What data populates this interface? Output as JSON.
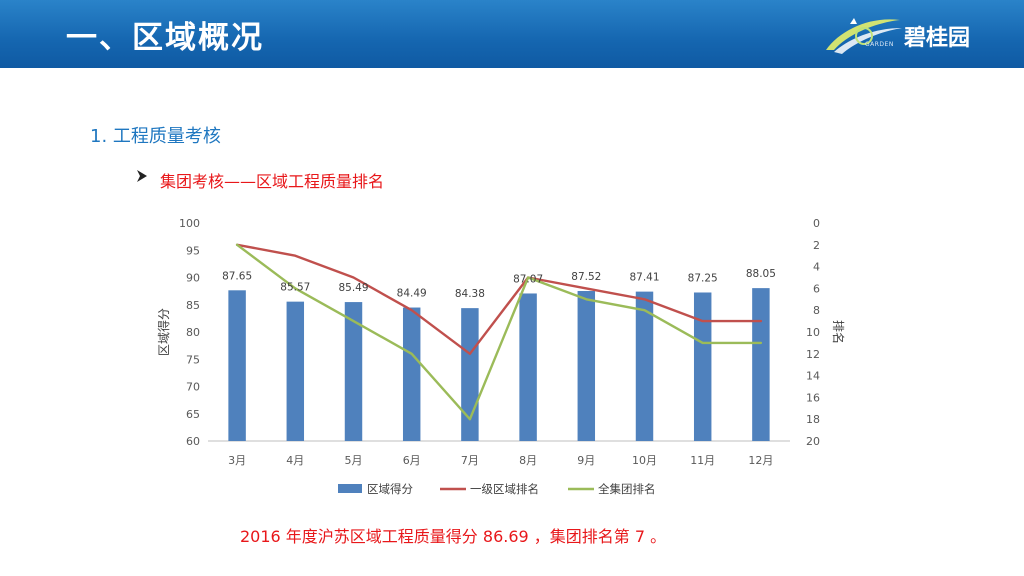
{
  "header": {
    "title": "一、区域概况"
  },
  "logo": {
    "text": "碧桂园",
    "sub": "GARDEN"
  },
  "section_title": "1. 工程质量考核",
  "bullet": "集团考核——区域工程质量排名",
  "summary": "2016 年度沪苏区域工程质量得分 86.69 ，集团排名第 7 。",
  "colors": {
    "header": "#1566b0",
    "bar": "#4f81bd",
    "line_region": "#c0504d",
    "line_group": "#9bbb59",
    "text_red": "#e8171a",
    "text_blue": "#1f77c0"
  },
  "chart_data": {
    "type": "bar",
    "categories": [
      "3月",
      "4月",
      "5月",
      "6月",
      "7月",
      "8月",
      "9月",
      "10月",
      "11月",
      "12月"
    ],
    "series": [
      {
        "name": "区域得分",
        "type": "bar",
        "axis": "left",
        "values": [
          87.65,
          85.57,
          85.49,
          84.49,
          84.38,
          87.07,
          87.52,
          87.41,
          87.25,
          88.05
        ],
        "labels": [
          "87.65",
          "85.57",
          "85.49",
          "84.49",
          "84.38",
          "87.07",
          "87.52",
          "87.41",
          "87.25",
          "88.05"
        ]
      },
      {
        "name": "一级区域排名",
        "type": "line",
        "axis": "right",
        "values": [
          2,
          3,
          5,
          8,
          12,
          5,
          6,
          7,
          9,
          9
        ]
      },
      {
        "name": "全集团排名",
        "type": "line",
        "axis": "right",
        "values": [
          2,
          6,
          9,
          12,
          18,
          5,
          7,
          8,
          11,
          11
        ]
      }
    ],
    "ylabel": "区域得分",
    "y2label": "排名",
    "ylim": [
      60,
      100
    ],
    "y2lim": [
      0,
      20
    ],
    "y_ticks": [
      "100",
      "95",
      "90",
      "85",
      "80",
      "75",
      "70",
      "65",
      "60"
    ],
    "y2_ticks": [
      "0",
      "2",
      "4",
      "6",
      "8",
      "10",
      "12",
      "14",
      "16",
      "18",
      "20"
    ],
    "y2_reversed": true,
    "grid": false,
    "legend_position": "bottom"
  }
}
